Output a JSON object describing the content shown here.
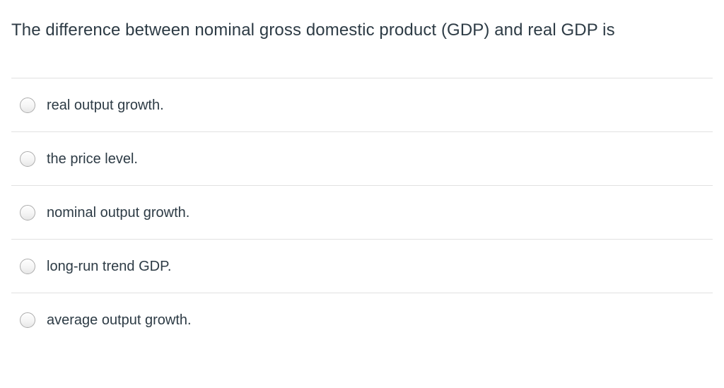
{
  "question": {
    "text": "The difference between nominal gross domestic product (GDP) and real GDP is"
  },
  "options": [
    {
      "label": "real output growth."
    },
    {
      "label": "the price level."
    },
    {
      "label": "nominal output growth."
    },
    {
      "label": "long-run trend GDP."
    },
    {
      "label": "average output growth."
    }
  ],
  "colors": {
    "text": "#2D3B45",
    "divider": "#E1E1E1",
    "radio_border": "#ACACAC",
    "background": "#FFFFFF"
  }
}
